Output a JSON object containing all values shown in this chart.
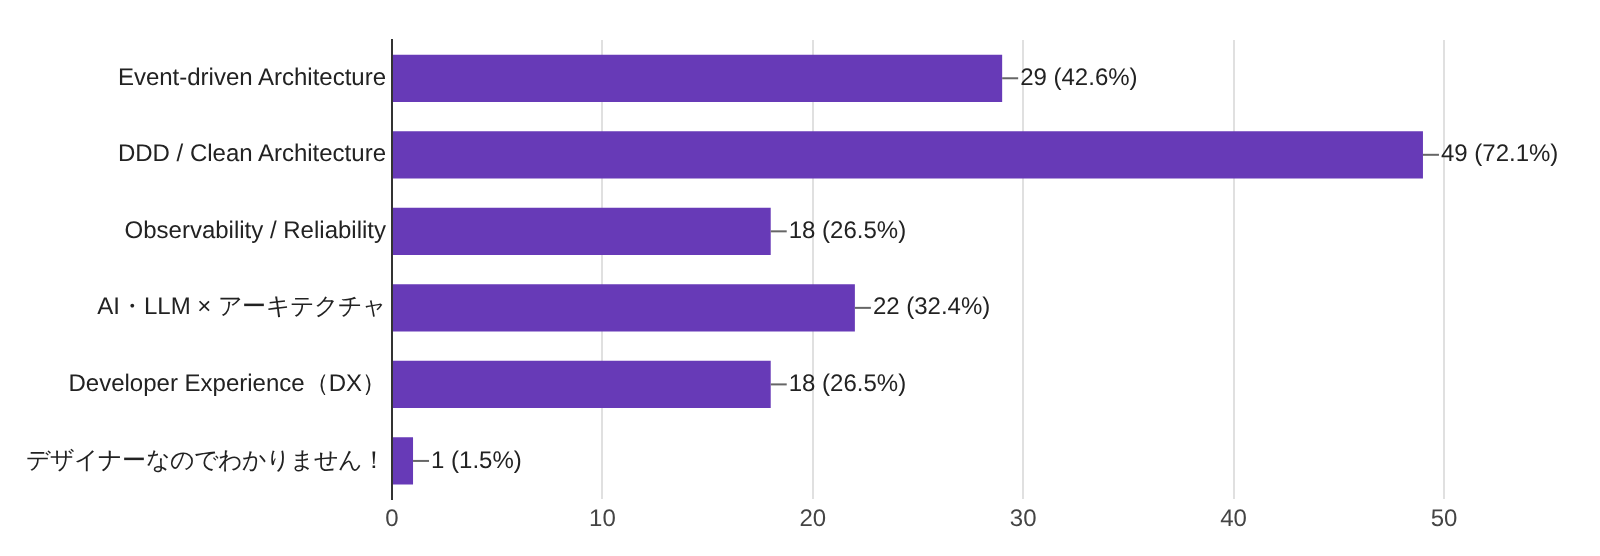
{
  "chart_data": {
    "type": "bar",
    "orientation": "horizontal",
    "categories": [
      "Event-driven Architecture",
      "DDD / Clean Architecture",
      "Observability / Reliability",
      "AI・LLM × アーキテクチャ",
      "Developer Experience（DX）",
      "デザイナーなのでわかりません！"
    ],
    "values": [
      29,
      49,
      18,
      22,
      18,
      1
    ],
    "value_labels": [
      "29 (42.6%)",
      "49 (72.1%)",
      "18 (26.5%)",
      "22 (32.4%)",
      "18 (26.5%)",
      "1 (1.5%)"
    ],
    "color": "#673ab7",
    "xlim": [
      0,
      50
    ],
    "xticks": [
      0,
      10,
      20,
      30,
      40,
      50
    ],
    "grid": "x",
    "legend": false
  }
}
